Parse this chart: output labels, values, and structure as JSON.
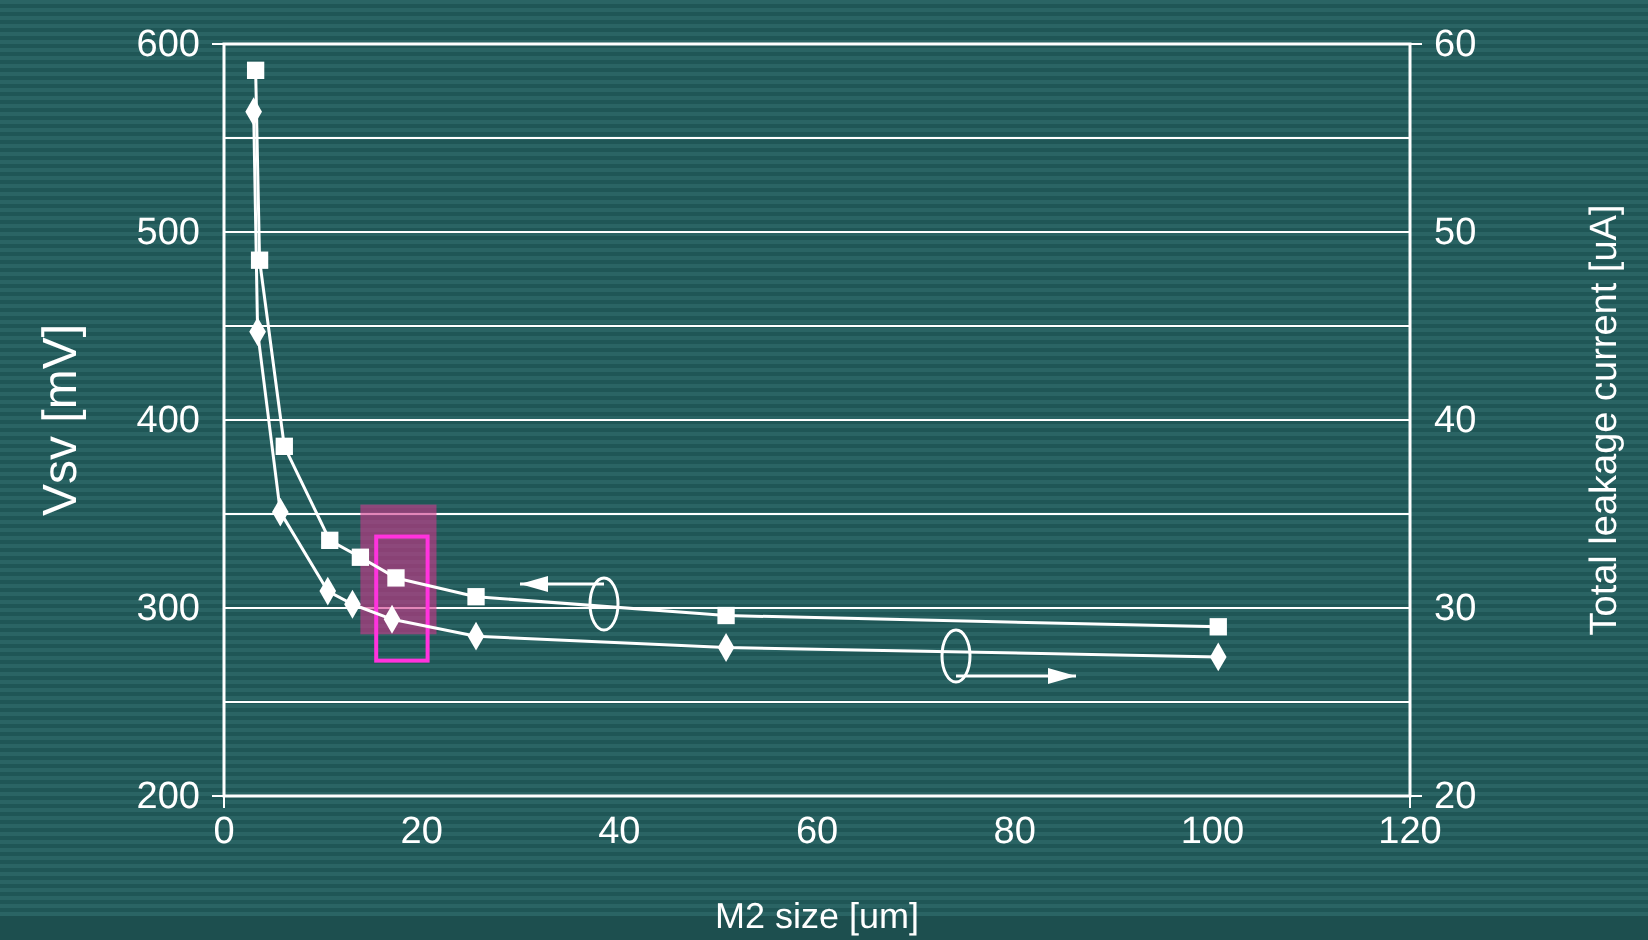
{
  "chart_data": {
    "type": "line",
    "xlabel": "M2 size [um]",
    "ylabel": "Vsv [mV]",
    "y2label": "Total leakage current [uA]",
    "xlim": [
      0,
      120
    ],
    "xticks": [
      0,
      20,
      40,
      60,
      80,
      100,
      120
    ],
    "ylim": [
      200,
      600
    ],
    "yticks": [
      200,
      {
        "value": 250,
        "label": null
      },
      300,
      {
        "value": 350,
        "label": null
      },
      400,
      {
        "value": 450,
        "label": null
      },
      500,
      {
        "value": 550,
        "label": null
      },
      600
    ],
    "y2lim": [
      20,
      60
    ],
    "y2ticks": [
      20,
      30,
      40,
      50,
      60
    ],
    "grid": "y",
    "line_style": "solid",
    "series": [
      {
        "color": "#ffffff",
        "marker": "square",
        "x": [
          3.2,
          3.6,
          6.1,
          10.7,
          13.8,
          17.4,
          25.5,
          50.8,
          100.6
        ],
        "values": [
          586,
          485,
          386,
          336,
          327,
          316,
          306,
          296,
          290
        ]
      },
      {
        "color": "#ffffff",
        "marker": "diamond",
        "axis": "y2",
        "x": [
          3.0,
          3.4,
          5.7,
          10.5,
          13,
          17,
          25.5,
          50.8,
          100.6
        ],
        "values": [
          56.4,
          44.7,
          35.1,
          30.9,
          30.2,
          29.4,
          28.5,
          27.9,
          27.4
        ]
      }
    ]
  }
}
